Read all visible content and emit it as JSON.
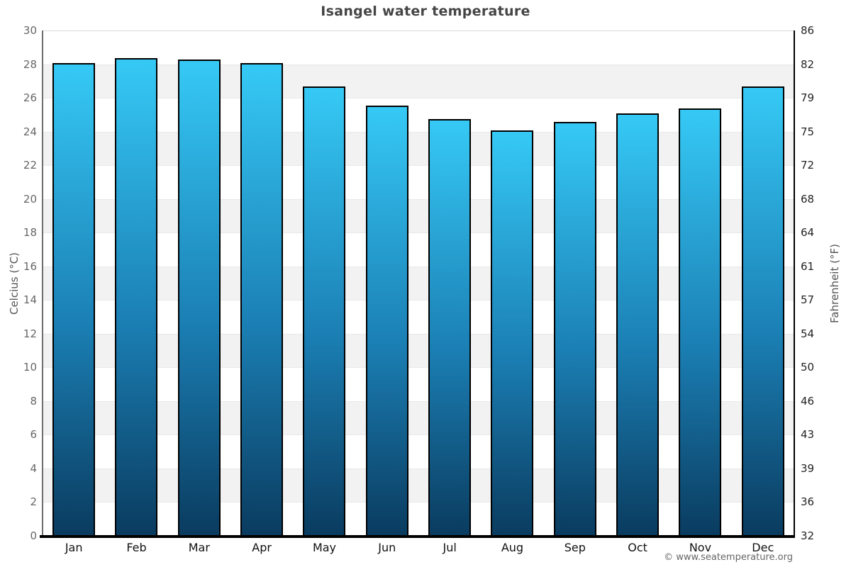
{
  "title": "Isangel water temperature",
  "footer": "© www.seatemperature.org",
  "chart_data": {
    "type": "bar",
    "title": "Isangel water temperature",
    "categories": [
      "Jan",
      "Feb",
      "Mar",
      "Apr",
      "May",
      "Jun",
      "Jul",
      "Aug",
      "Sep",
      "Oct",
      "Nov",
      "Dec"
    ],
    "values": [
      28.1,
      28.4,
      28.3,
      28.1,
      26.7,
      25.6,
      24.8,
      24.1,
      24.6,
      25.1,
      25.4,
      26.7
    ],
    "xlabel": "",
    "ylabel_left": "Celcius (°C)",
    "ylabel_right": "Fahrenheit (°F)",
    "ylim": [
      0,
      30
    ],
    "yticks_left": [
      30,
      28,
      26,
      24,
      22,
      20,
      18,
      16,
      14,
      12,
      10,
      8,
      6,
      4,
      2,
      0
    ],
    "yticks_right": [
      86,
      82,
      79,
      75,
      72,
      68,
      64,
      61,
      57,
      54,
      50,
      46,
      43,
      39,
      36,
      32
    ],
    "legend": "none",
    "grid": "alternating horizontal bands every 2 degrees C",
    "colors": {
      "bar_gradient_top": "#36c9f5",
      "bar_gradient_bottom": "#0a3b5f",
      "bar_border": "#000000",
      "band_light": "#ffffff",
      "band_dark": "#f2f2f2",
      "left_axis_line": "#6e6e6e",
      "right_axis_line": "#000000",
      "baseline": "#000000",
      "title_text": "#454545",
      "left_tick_text": "#666666",
      "right_tick_text": "#222222",
      "month_text": "#111111",
      "axis_title_text": "#555555",
      "footer_text": "#666666"
    }
  }
}
